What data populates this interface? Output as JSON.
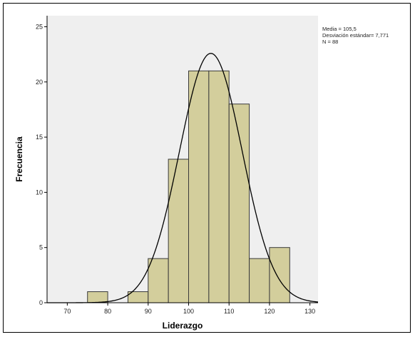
{
  "chart_data": {
    "type": "bar",
    "subtype": "histogram",
    "xlabel": "Liderazgo",
    "ylabel": "Frecuencia",
    "xlim": [
      65,
      132
    ],
    "ylim": [
      0,
      26
    ],
    "xticks": [
      70,
      80,
      90,
      100,
      110,
      120,
      130
    ],
    "yticks": [
      0,
      5,
      10,
      15,
      20,
      25
    ],
    "bins": [
      {
        "from": 75,
        "to": 80,
        "count": 1
      },
      {
        "from": 80,
        "to": 85,
        "count": 0
      },
      {
        "from": 85,
        "to": 90,
        "count": 1
      },
      {
        "from": 90,
        "to": 95,
        "count": 4
      },
      {
        "from": 95,
        "to": 100,
        "count": 13
      },
      {
        "from": 100,
        "to": 105,
        "count": 21
      },
      {
        "from": 105,
        "to": 110,
        "count": 21
      },
      {
        "from": 110,
        "to": 115,
        "count": 18
      },
      {
        "from": 115,
        "to": 120,
        "count": 4
      },
      {
        "from": 120,
        "to": 125,
        "count": 5
      }
    ],
    "normal_curve": {
      "mean": 105.5,
      "sd": 7.771,
      "n": 88,
      "bin_width": 5
    },
    "stats_box": [
      "Media = 105,5",
      "Desviación estándar= 7,771",
      "N = 88"
    ],
    "colors": {
      "plot_bg": "#efefef",
      "bar_fill": "#d3ce9c",
      "bar_stroke": "#3a3a3a",
      "curve": "#000000"
    },
    "grid": false
  }
}
